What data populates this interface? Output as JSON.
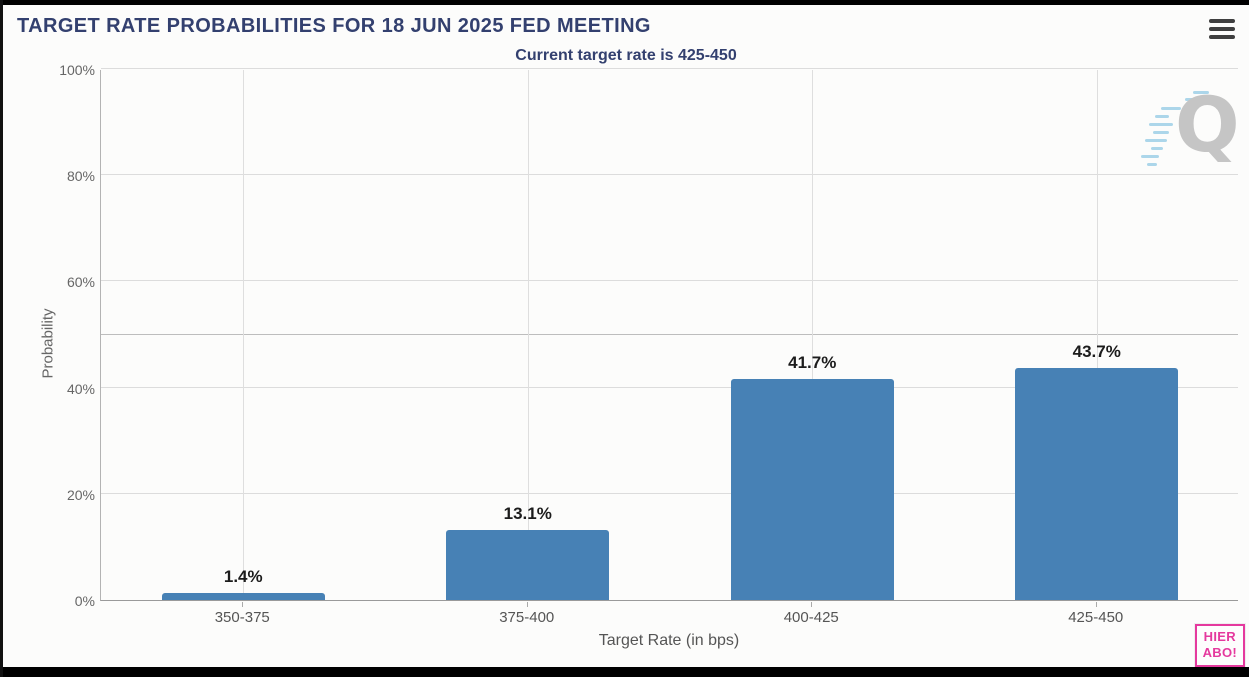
{
  "header": {
    "title": "TARGET RATE PROBABILITIES FOR 18 JUN 2025 FED MEETING",
    "menu_icon": "hamburger-icon"
  },
  "chart_data": {
    "type": "bar",
    "title": "TARGET RATE PROBABILITIES FOR 18 JUN 2025 FED MEETING",
    "subtitle": "Current target rate is 425-450",
    "categories": [
      "350-375",
      "375-400",
      "400-425",
      "425-450"
    ],
    "values": [
      1.4,
      13.1,
      41.7,
      43.7
    ],
    "value_labels": [
      "1.4%",
      "13.1%",
      "41.7%",
      "43.7%"
    ],
    "xlabel": "Target Rate (in bps)",
    "ylabel": "Probability",
    "ylim": [
      0,
      100
    ],
    "yticks": [
      0,
      20,
      40,
      60,
      80,
      100
    ],
    "ytick_labels": [
      "0%",
      "20%",
      "40%",
      "60%",
      "80%",
      "100%"
    ],
    "grid": true,
    "reference_line": 50,
    "legend": "none",
    "bar_color": "#4781b5"
  },
  "watermark": {
    "letter": "Q"
  },
  "sticker": {
    "line1": "HIER",
    "line2": "ABO!",
    "color": "#e5399e"
  },
  "colors": {
    "title_navy": "#33406f",
    "bar_blue": "#4781b5",
    "axis_gray": "#666666",
    "grid_gray": "#dcdcdc",
    "sticker_pink": "#e5399e",
    "background": "#fcfcfb"
  }
}
